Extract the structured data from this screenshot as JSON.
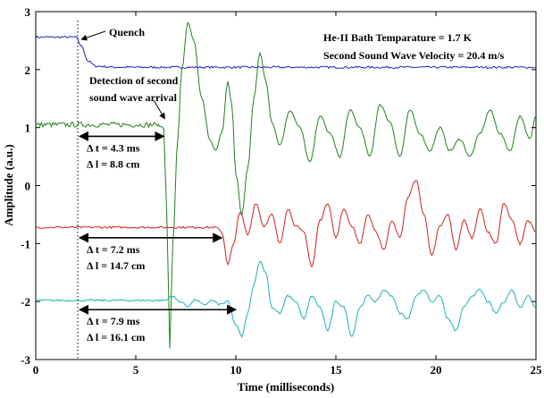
{
  "chart_data": {
    "type": "line",
    "xlabel": "Time (milliseconds)",
    "ylabel": "Amplitude (a.u.)",
    "xlim": [
      0,
      25
    ],
    "ylim": [
      -3,
      3
    ],
    "xticks": [
      "0",
      "5",
      "10",
      "15",
      "20",
      "25"
    ],
    "yticks": [
      "-3",
      "-2",
      "-1",
      "0",
      "1",
      "2",
      "3"
    ],
    "grid": false,
    "legend": "none",
    "info_text": [
      "He-II Bath Temparature = 1.7 K",
      "Second Sound Wave Velocity = 20.4 m/s"
    ],
    "quench_label": "Quench",
    "quench_time": 2.1,
    "detection_label": [
      "Detection of second",
      "sound wave arrival"
    ],
    "intervals": [
      {
        "dt": "Δ t = 4.3 ms",
        "dl": "Δ l = 8.8 cm",
        "start": 2.1,
        "end": 6.4,
        "y": 0.85
      },
      {
        "dt": "Δ t = 7.2 ms",
        "dl": "Δ l = 14.7 cm",
        "start": 2.1,
        "end": 9.3,
        "y": -0.9
      },
      {
        "dt": "Δ t = 7.9 ms",
        "dl": "Δ l = 16.1 cm",
        "start": 2.1,
        "end": 10.0,
        "y": -2.14
      }
    ],
    "series": [
      {
        "color": "#2020c0",
        "x": [
          0,
          2.0,
          2.3,
          2.6,
          3.0,
          4,
          6,
          8,
          10,
          12,
          14,
          16,
          18,
          20,
          22,
          24,
          25
        ],
        "y": [
          2.56,
          2.56,
          2.4,
          2.15,
          2.06,
          2.04,
          2.04,
          2.04,
          2.04,
          2.04,
          2.04,
          2.04,
          2.04,
          2.04,
          2.04,
          2.04,
          2.04
        ]
      },
      {
        "color": "#208020",
        "x": [
          0,
          6.0,
          6.4,
          6.55,
          6.7,
          6.85,
          7.1,
          7.3,
          7.6,
          7.9,
          8.3,
          8.7,
          9.0,
          9.3,
          9.6,
          9.8,
          10.0,
          10.3,
          10.6,
          10.9,
          11.2,
          11.5,
          11.8,
          12.2,
          12.7,
          13.2,
          13.7,
          14.2,
          14.7,
          15.2,
          15.7,
          16.2,
          16.7,
          17.2,
          17.7,
          18.2,
          18.7,
          19.2,
          19.7,
          20.2,
          20.7,
          21.2,
          21.7,
          22.2,
          22.7,
          23.2,
          23.7,
          24.2,
          24.7,
          25
        ],
        "y": [
          1.05,
          1.05,
          1.0,
          -0.5,
          -2.8,
          -1.0,
          0.8,
          2.0,
          2.8,
          2.5,
          1.5,
          0.8,
          0.6,
          0.9,
          1.8,
          1.4,
          0.2,
          -0.5,
          0.3,
          1.5,
          2.3,
          1.8,
          1.1,
          0.7,
          1.3,
          1.0,
          0.4,
          1.2,
          0.9,
          0.5,
          1.3,
          1.0,
          0.5,
          1.4,
          1.1,
          0.5,
          1.3,
          0.9,
          0.6,
          1.0,
          0.6,
          0.8,
          0.5,
          0.9,
          1.3,
          0.9,
          0.6,
          1.2,
          0.8,
          1.2
        ]
      },
      {
        "color": "#d02020",
        "x": [
          0,
          9.0,
          9.3,
          9.6,
          9.9,
          10.2,
          10.6,
          11.0,
          11.4,
          11.8,
          12.2,
          12.6,
          13.0,
          13.4,
          13.8,
          14.2,
          14.6,
          15.0,
          15.4,
          15.8,
          16.2,
          16.6,
          17.0,
          17.4,
          17.8,
          18.2,
          18.6,
          19.0,
          19.4,
          19.8,
          20.2,
          20.6,
          21.0,
          21.4,
          21.8,
          22.2,
          22.6,
          23.0,
          23.4,
          23.8,
          24.2,
          24.6,
          25
        ],
        "y": [
          -0.72,
          -0.72,
          -0.8,
          -1.35,
          -1.0,
          -0.45,
          -0.85,
          -0.3,
          -0.7,
          -0.5,
          -1.0,
          -0.4,
          -0.7,
          -0.8,
          -1.4,
          -0.6,
          -0.3,
          -0.9,
          -0.4,
          -0.7,
          -1.0,
          -0.5,
          -0.8,
          -1.1,
          -0.6,
          -0.9,
          -0.2,
          0.1,
          -0.5,
          -1.2,
          -0.7,
          -0.5,
          -1.1,
          -0.6,
          -0.9,
          -0.4,
          -0.8,
          -1.0,
          -0.3,
          -0.6,
          -1.0,
          -0.6,
          -0.8
        ]
      },
      {
        "color": "#20b0b0",
        "x": [
          0,
          6.5,
          6.8,
          7.2,
          7.6,
          8.0,
          8.4,
          8.8,
          9.2,
          9.6,
          10.0,
          10.3,
          10.6,
          10.9,
          11.2,
          11.5,
          11.8,
          12.2,
          12.6,
          13.0,
          13.4,
          13.8,
          14.2,
          14.6,
          15.0,
          15.4,
          15.8,
          16.2,
          16.6,
          17.0,
          17.4,
          17.8,
          18.2,
          18.6,
          19.0,
          19.4,
          19.8,
          20.2,
          20.6,
          21.0,
          21.4,
          21.8,
          22.2,
          22.6,
          23.0,
          23.4,
          23.8,
          24.2,
          24.6,
          25
        ],
        "y": [
          -1.98,
          -1.98,
          -1.9,
          -2.0,
          -2.08,
          -1.97,
          -2.06,
          -1.98,
          -2.05,
          -2.0,
          -2.4,
          -2.6,
          -2.2,
          -1.7,
          -1.3,
          -1.5,
          -2.1,
          -2.2,
          -1.9,
          -2.0,
          -2.3,
          -1.9,
          -2.1,
          -2.5,
          -2.0,
          -2.1,
          -2.6,
          -2.1,
          -1.9,
          -2.0,
          -1.8,
          -1.9,
          -2.2,
          -2.3,
          -1.9,
          -1.8,
          -2.0,
          -1.9,
          -2.3,
          -2.5,
          -2.1,
          -1.9,
          -1.8,
          -2.0,
          -2.2,
          -2.0,
          -1.8,
          -2.1,
          -1.9,
          -2.1
        ]
      }
    ]
  }
}
